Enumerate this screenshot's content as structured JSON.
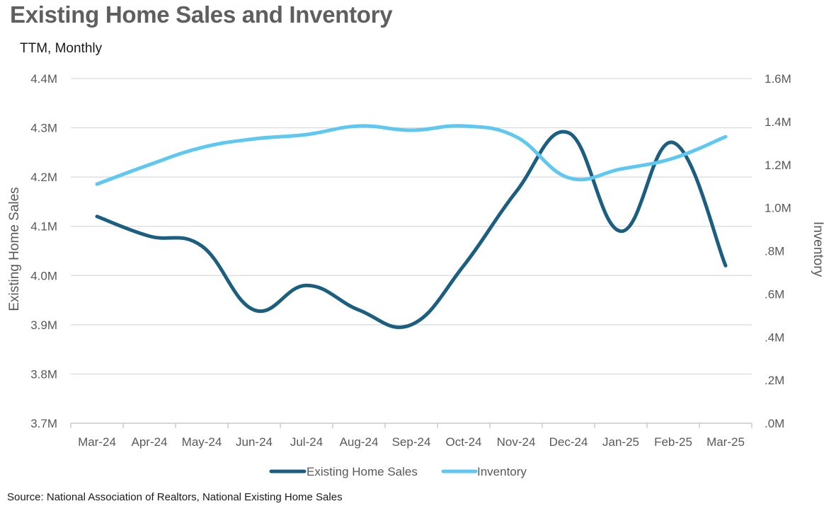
{
  "title": "Existing Home Sales and Inventory",
  "subtitle": "TTM, Monthly",
  "source": "Source: National Association of Realtors, National Existing Home Sales",
  "chart_data": {
    "type": "line",
    "categories": [
      "Mar-24",
      "Apr-24",
      "May-24",
      "Jun-24",
      "Jul-24",
      "Aug-24",
      "Sep-24",
      "Oct-24",
      "Nov-24",
      "Dec-24",
      "Jan-25",
      "Feb-25",
      "Mar-25"
    ],
    "series": [
      {
        "name": "Existing Home Sales",
        "axis": "left",
        "color": "#1b5e80",
        "values": [
          4.12,
          4.08,
          4.06,
          3.93,
          3.98,
          3.93,
          3.9,
          4.02,
          4.17,
          4.29,
          4.09,
          4.27,
          4.02
        ]
      },
      {
        "name": "Inventory",
        "axis": "right",
        "color": "#5ec8f0",
        "values": [
          1.11,
          1.2,
          1.28,
          1.32,
          1.34,
          1.38,
          1.36,
          1.38,
          1.33,
          1.14,
          1.18,
          1.23,
          1.33
        ]
      }
    ],
    "ylabel": "Existing Home Sales",
    "y2label": "Inventory",
    "ylim": [
      3.7,
      4.4
    ],
    "y2lim": [
      0.0,
      1.6
    ],
    "yticks": [
      "4.4M",
      "4.3M",
      "4.2M",
      "4.1M",
      "4.0M",
      "3.9M",
      "3.8M",
      "3.7M"
    ],
    "y2ticks": [
      "1.6M",
      "1.4M",
      "1.2M",
      "1.0M",
      ".8M",
      ".6M",
      ".4M",
      ".2M",
      ".0M"
    ],
    "grid": true,
    "legend": "bottom"
  }
}
